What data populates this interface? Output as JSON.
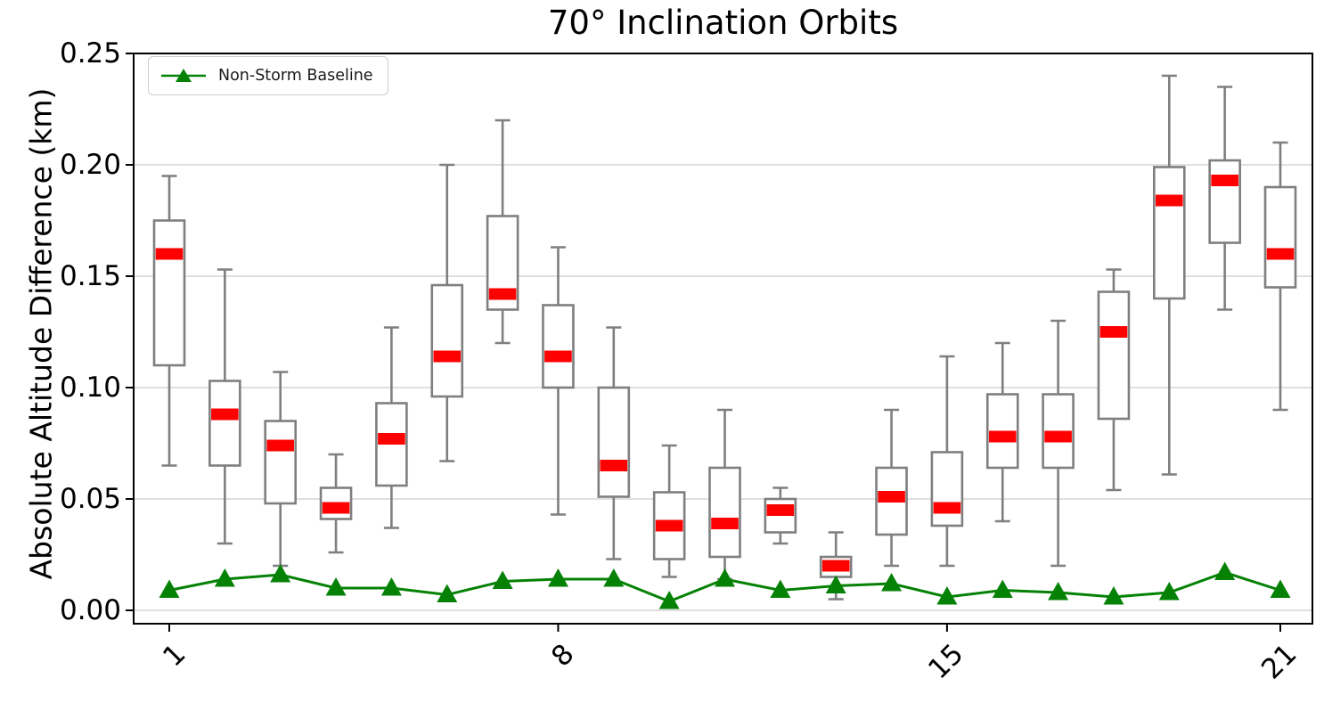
{
  "figure": {
    "title": "70° Inclination Orbits",
    "y_axis": {
      "label": "Absolute Altitude Difference (km)",
      "ticks": [
        "0.00",
        "0.05",
        "0.10",
        "0.15",
        "0.20",
        "0.25"
      ],
      "tick_values": [
        0.0,
        0.05,
        0.1,
        0.15,
        0.2,
        0.25
      ],
      "range": [
        0.0,
        0.25
      ]
    },
    "x_axis": {
      "ticks": [
        {
          "label": "1",
          "orbit": 1
        },
        {
          "label": "8",
          "orbit": 8
        },
        {
          "label": "15",
          "orbit": 15
        },
        {
          "label": "21",
          "orbit": 21
        }
      ]
    },
    "legend": {
      "label": "Non-Storm Baseline",
      "marker": "triangle-up-icon"
    }
  },
  "colors": {
    "median": "#ff0000",
    "box_edge": "#7f7f7f",
    "whisker": "#7f7f7f",
    "baseline_green": "#058205",
    "gridline": "#cccccc",
    "spine": "#000000",
    "text": "#000000"
  },
  "chart_data": {
    "type": "boxplot-with-line",
    "title": "70° Inclination Orbits",
    "xlabel": "",
    "ylabel": "Absolute Altitude Difference (km)",
    "ylim": [
      0.0,
      0.25
    ],
    "grid": "horizontal",
    "legend_position": "upper-left",
    "categories": [
      1,
      2,
      3,
      4,
      5,
      6,
      7,
      8,
      9,
      10,
      11,
      12,
      13,
      14,
      15,
      16,
      17,
      18,
      19,
      20,
      21
    ],
    "x_tick_labels_shown": [
      "1",
      "8",
      "15",
      "21"
    ],
    "boxes": [
      {
        "orbit": 1,
        "whisker_low": 0.065,
        "q1": 0.11,
        "median": 0.16,
        "q3": 0.175,
        "whisker_high": 0.195
      },
      {
        "orbit": 2,
        "whisker_low": 0.03,
        "q1": 0.065,
        "median": 0.088,
        "q3": 0.103,
        "whisker_high": 0.153
      },
      {
        "orbit": 3,
        "whisker_low": 0.02,
        "q1": 0.048,
        "median": 0.074,
        "q3": 0.085,
        "whisker_high": 0.107
      },
      {
        "orbit": 4,
        "whisker_low": 0.026,
        "q1": 0.041,
        "median": 0.046,
        "q3": 0.055,
        "whisker_high": 0.07
      },
      {
        "orbit": 5,
        "whisker_low": 0.037,
        "q1": 0.056,
        "median": 0.077,
        "q3": 0.093,
        "whisker_high": 0.127
      },
      {
        "orbit": 6,
        "whisker_low": 0.067,
        "q1": 0.096,
        "median": 0.114,
        "q3": 0.146,
        "whisker_high": 0.2
      },
      {
        "orbit": 7,
        "whisker_low": 0.12,
        "q1": 0.135,
        "median": 0.142,
        "q3": 0.177,
        "whisker_high": 0.22
      },
      {
        "orbit": 8,
        "whisker_low": 0.043,
        "q1": 0.1,
        "median": 0.114,
        "q3": 0.137,
        "whisker_high": 0.163
      },
      {
        "orbit": 9,
        "whisker_low": 0.023,
        "q1": 0.051,
        "median": 0.065,
        "q3": 0.1,
        "whisker_high": 0.127
      },
      {
        "orbit": 10,
        "whisker_low": 0.015,
        "q1": 0.023,
        "median": 0.038,
        "q3": 0.053,
        "whisker_high": 0.074
      },
      {
        "orbit": 11,
        "whisker_low": 0.014,
        "q1": 0.024,
        "median": 0.039,
        "q3": 0.064,
        "whisker_high": 0.09
      },
      {
        "orbit": 12,
        "whisker_low": 0.03,
        "q1": 0.035,
        "median": 0.045,
        "q3": 0.05,
        "whisker_high": 0.055
      },
      {
        "orbit": 13,
        "whisker_low": 0.005,
        "q1": 0.015,
        "median": 0.02,
        "q3": 0.024,
        "whisker_high": 0.035
      },
      {
        "orbit": 14,
        "whisker_low": 0.02,
        "q1": 0.034,
        "median": 0.051,
        "q3": 0.064,
        "whisker_high": 0.09
      },
      {
        "orbit": 15,
        "whisker_low": 0.02,
        "q1": 0.038,
        "median": 0.046,
        "q3": 0.071,
        "whisker_high": 0.114
      },
      {
        "orbit": 16,
        "whisker_low": 0.04,
        "q1": 0.064,
        "median": 0.078,
        "q3": 0.097,
        "whisker_high": 0.12
      },
      {
        "orbit": 17,
        "whisker_low": 0.02,
        "q1": 0.064,
        "median": 0.078,
        "q3": 0.097,
        "whisker_high": 0.13
      },
      {
        "orbit": 18,
        "whisker_low": 0.054,
        "q1": 0.086,
        "median": 0.125,
        "q3": 0.143,
        "whisker_high": 0.153
      },
      {
        "orbit": 19,
        "whisker_low": 0.061,
        "q1": 0.14,
        "median": 0.184,
        "q3": 0.199,
        "whisker_high": 0.24
      },
      {
        "orbit": 20,
        "whisker_low": 0.135,
        "q1": 0.165,
        "median": 0.193,
        "q3": 0.202,
        "whisker_high": 0.235
      },
      {
        "orbit": 21,
        "whisker_low": 0.09,
        "q1": 0.145,
        "median": 0.16,
        "q3": 0.19,
        "whisker_high": 0.21
      }
    ],
    "series": [
      {
        "name": "Non-Storm Baseline",
        "type": "line",
        "marker": "triangle-up",
        "values": [
          0.009,
          0.014,
          0.016,
          0.01,
          0.01,
          0.007,
          0.013,
          0.014,
          0.014,
          0.004,
          0.014,
          0.009,
          0.011,
          0.012,
          0.006,
          0.009,
          0.008,
          0.006,
          0.008,
          0.017,
          0.009
        ]
      }
    ]
  }
}
